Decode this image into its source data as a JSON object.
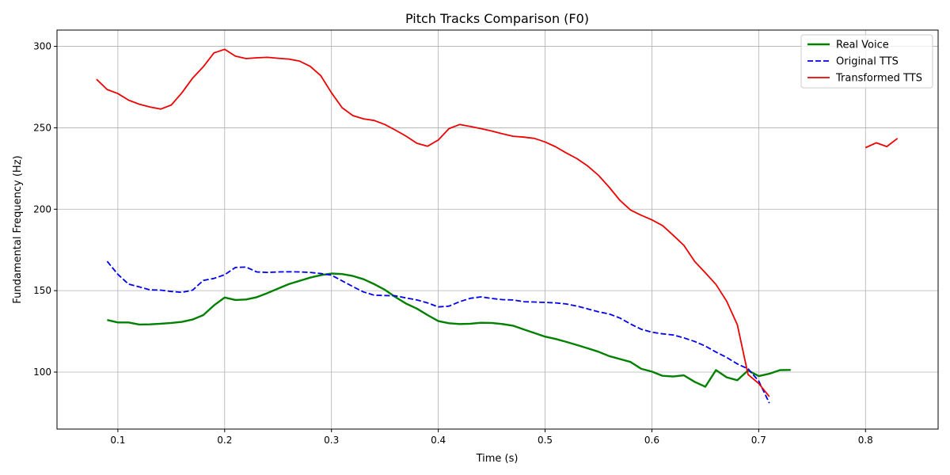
{
  "chart_data": {
    "type": "line",
    "title": "Pitch Tracks Comparison (F0)",
    "xlabel": "Time (s)",
    "ylabel": "Fundamental Frequency (Hz)",
    "xlim": [
      0.043,
      0.868
    ],
    "ylim": [
      65,
      310
    ],
    "xticks": [
      0.1,
      0.2,
      0.3,
      0.4,
      0.5,
      0.6,
      0.7,
      0.8
    ],
    "xtick_labels": [
      "0.1",
      "0.2",
      "0.3",
      "0.4",
      "0.5",
      "0.6",
      "0.7",
      "0.8"
    ],
    "yticks": [
      100,
      150,
      200,
      250,
      300
    ],
    "ytick_labels": [
      "100",
      "150",
      "200",
      "250",
      "300"
    ],
    "grid": true,
    "legend_position": "top-right",
    "series": [
      {
        "name": "Real Voice",
        "color": "#008000",
        "dash": "solid",
        "width": 2.4,
        "segments": [
          [
            [
              0.09,
              132
            ],
            [
              0.1,
              130.5
            ],
            [
              0.11,
              130.5
            ],
            [
              0.12,
              129.2
            ],
            [
              0.13,
              129.3
            ],
            [
              0.14,
              129.7
            ],
            [
              0.15,
              130.2
            ],
            [
              0.16,
              130.8
            ],
            [
              0.17,
              132.3
            ],
            [
              0.18,
              135
            ],
            [
              0.19,
              141
            ],
            [
              0.2,
              145.8
            ],
            [
              0.21,
              144.3
            ],
            [
              0.22,
              144.6
            ],
            [
              0.23,
              146
            ],
            [
              0.24,
              148.5
            ],
            [
              0.25,
              151.3
            ],
            [
              0.26,
              154
            ],
            [
              0.27,
              156
            ],
            [
              0.28,
              158
            ],
            [
              0.29,
              159.5
            ],
            [
              0.3,
              160.5
            ],
            [
              0.31,
              160.2
            ],
            [
              0.32,
              159
            ],
            [
              0.33,
              157
            ],
            [
              0.34,
              154
            ],
            [
              0.35,
              150.5
            ],
            [
              0.36,
              146
            ],
            [
              0.37,
              142
            ],
            [
              0.38,
              139
            ],
            [
              0.39,
              135
            ],
            [
              0.4,
              131.3
            ],
            [
              0.41,
              130
            ],
            [
              0.42,
              129.5
            ],
            [
              0.43,
              129.7
            ],
            [
              0.44,
              130.3
            ],
            [
              0.45,
              130.2
            ],
            [
              0.46,
              129.5
            ],
            [
              0.47,
              128.5
            ],
            [
              0.48,
              126.2
            ],
            [
              0.49,
              124
            ],
            [
              0.5,
              121.8
            ],
            [
              0.51,
              120.3
            ],
            [
              0.52,
              118.5
            ],
            [
              0.53,
              116.6
            ],
            [
              0.54,
              114.6
            ],
            [
              0.55,
              112.5
            ],
            [
              0.56,
              109.8
            ],
            [
              0.57,
              108
            ],
            [
              0.58,
              106.2
            ],
            [
              0.59,
              102
            ],
            [
              0.6,
              100.3
            ],
            [
              0.61,
              97.7
            ],
            [
              0.62,
              97.3
            ],
            [
              0.63,
              98
            ],
            [
              0.64,
              94
            ],
            [
              0.65,
              91
            ],
            [
              0.66,
              101.2
            ],
            [
              0.67,
              96.8
            ],
            [
              0.68,
              95
            ],
            [
              0.69,
              101
            ],
            [
              0.7,
              97.5
            ],
            [
              0.71,
              99
            ],
            [
              0.72,
              101.2
            ],
            [
              0.73,
              101.3
            ]
          ]
        ]
      },
      {
        "name": "Original TTS",
        "color": "#0000ee",
        "dash": "dashed",
        "width": 1.8,
        "segments": [
          [
            [
              0.09,
              168
            ],
            [
              0.1,
              160
            ],
            [
              0.11,
              154
            ],
            [
              0.12,
              152.3
            ],
            [
              0.13,
              150.5
            ],
            [
              0.14,
              150.3
            ],
            [
              0.15,
              149.5
            ],
            [
              0.16,
              149
            ],
            [
              0.17,
              150.3
            ],
            [
              0.18,
              156.3
            ],
            [
              0.19,
              157.5
            ],
            [
              0.2,
              159.8
            ],
            [
              0.21,
              164.2
            ],
            [
              0.22,
              164.5
            ],
            [
              0.23,
              161.5
            ],
            [
              0.24,
              161.2
            ],
            [
              0.25,
              161.5
            ],
            [
              0.26,
              161.6
            ],
            [
              0.27,
              161.5
            ],
            [
              0.28,
              161.2
            ],
            [
              0.29,
              160.5
            ],
            [
              0.3,
              159.5
            ],
            [
              0.31,
              156
            ],
            [
              0.32,
              152.5
            ],
            [
              0.33,
              149.2
            ],
            [
              0.34,
              147.2
            ],
            [
              0.35,
              147
            ],
            [
              0.36,
              146.8
            ],
            [
              0.37,
              145.5
            ],
            [
              0.38,
              144.3
            ],
            [
              0.39,
              142.5
            ],
            [
              0.4,
              140
            ],
            [
              0.41,
              140.5
            ],
            [
              0.42,
              143.2
            ],
            [
              0.43,
              145.3
            ],
            [
              0.44,
              146.2
            ],
            [
              0.45,
              145.2
            ],
            [
              0.46,
              144.5
            ],
            [
              0.47,
              144.3
            ],
            [
              0.48,
              143.2
            ],
            [
              0.49,
              143
            ],
            [
              0.5,
              142.8
            ],
            [
              0.51,
              142.5
            ],
            [
              0.52,
              141.8
            ],
            [
              0.53,
              140.5
            ],
            [
              0.54,
              138.8
            ],
            [
              0.55,
              137
            ],
            [
              0.56,
              135.7
            ],
            [
              0.57,
              133.2
            ],
            [
              0.58,
              129.5
            ],
            [
              0.59,
              126.3
            ],
            [
              0.6,
              124.5
            ],
            [
              0.61,
              123.5
            ],
            [
              0.62,
              122.8
            ],
            [
              0.63,
              121
            ],
            [
              0.64,
              118.8
            ],
            [
              0.65,
              116
            ],
            [
              0.66,
              112.3
            ],
            [
              0.67,
              109
            ],
            [
              0.68,
              105
            ],
            [
              0.69,
              102
            ],
            [
              0.7,
              94.5
            ],
            [
              0.71,
              81
            ]
          ]
        ]
      },
      {
        "name": "Transformed TTS",
        "color": "#ee0000",
        "dash": "solid",
        "width": 1.8,
        "segments": [
          [
            [
              0.08,
              279.8
            ],
            [
              0.09,
              273.5
            ],
            [
              0.1,
              271
            ],
            [
              0.11,
              267
            ],
            [
              0.12,
              264.5
            ],
            [
              0.13,
              262.8
            ],
            [
              0.14,
              261.5
            ],
            [
              0.15,
              264
            ],
            [
              0.16,
              271.5
            ],
            [
              0.17,
              280.5
            ],
            [
              0.18,
              287.5
            ],
            [
              0.19,
              296
            ],
            [
              0.2,
              298.2
            ],
            [
              0.21,
              294
            ],
            [
              0.22,
              292.5
            ],
            [
              0.23,
              293
            ],
            [
              0.24,
              293.3
            ],
            [
              0.25,
              292.7
            ],
            [
              0.26,
              292.2
            ],
            [
              0.27,
              291
            ],
            [
              0.28,
              287.8
            ],
            [
              0.29,
              282
            ],
            [
              0.3,
              271.5
            ],
            [
              0.31,
              262.3
            ],
            [
              0.32,
              257.5
            ],
            [
              0.33,
              255.5
            ],
            [
              0.34,
              254.5
            ],
            [
              0.35,
              252
            ],
            [
              0.36,
              248.5
            ],
            [
              0.37,
              244.8
            ],
            [
              0.38,
              240.5
            ],
            [
              0.39,
              238.7
            ],
            [
              0.4,
              242.5
            ],
            [
              0.41,
              249.5
            ],
            [
              0.42,
              252
            ],
            [
              0.43,
              250.8
            ],
            [
              0.44,
              249.5
            ],
            [
              0.45,
              248
            ],
            [
              0.46,
              246.3
            ],
            [
              0.47,
              244.8
            ],
            [
              0.48,
              244.3
            ],
            [
              0.49,
              243.5
            ],
            [
              0.5,
              241.3
            ],
            [
              0.51,
              238.3
            ],
            [
              0.52,
              234.5
            ],
            [
              0.53,
              231
            ],
            [
              0.54,
              226.5
            ],
            [
              0.55,
              220.8
            ],
            [
              0.56,
              213.5
            ],
            [
              0.57,
              205.5
            ],
            [
              0.58,
              199.5
            ],
            [
              0.59,
              196.3
            ],
            [
              0.6,
              193.5
            ],
            [
              0.61,
              190
            ],
            [
              0.62,
              184
            ],
            [
              0.63,
              177.8
            ],
            [
              0.64,
              168
            ],
            [
              0.65,
              161
            ],
            [
              0.66,
              153.8
            ],
            [
              0.67,
              143.5
            ],
            [
              0.68,
              129
            ],
            [
              0.69,
              98.5
            ],
            [
              0.7,
              93
            ],
            [
              0.71,
              85
            ]
          ],
          [
            [
              0.8,
              237.8
            ],
            [
              0.81,
              240.8
            ],
            [
              0.82,
              238.5
            ],
            [
              0.83,
              243.5
            ]
          ]
        ]
      }
    ]
  }
}
